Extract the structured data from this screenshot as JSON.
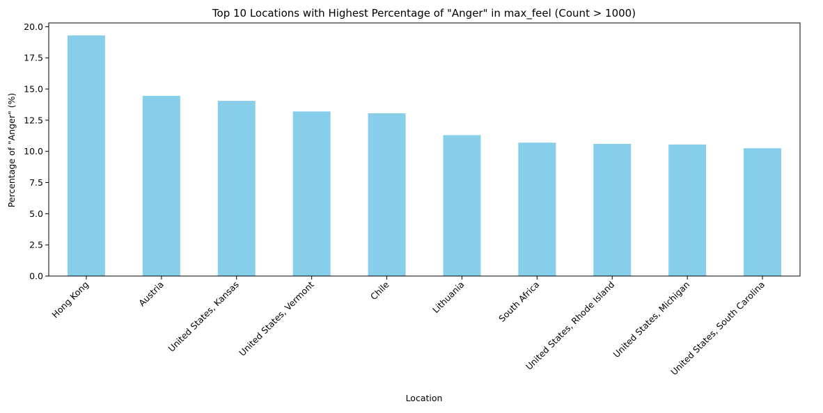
{
  "chart_data": {
    "type": "bar",
    "title": "Top 10 Locations with Highest Percentage of \"Anger\" in max_feel (Count > 1000)",
    "xlabel": "Location",
    "ylabel": "Percentage of \"Anger\" (%)",
    "categories": [
      "Hong Kong",
      "Austria",
      "United States, Kansas",
      "United States, Vermont",
      "Chile",
      "Lithuania",
      "South Africa",
      "United States, Rhode Island",
      "United States, Michigan",
      "United States, South Carolina"
    ],
    "values": [
      19.3,
      14.45,
      14.05,
      13.2,
      13.05,
      11.3,
      10.7,
      10.6,
      10.55,
      10.25
    ],
    "ylim": [
      0,
      20.3
    ],
    "yticks": [
      "0.0",
      "2.5",
      "5.0",
      "7.5",
      "10.0",
      "12.5",
      "15.0",
      "17.5",
      "20.0"
    ],
    "bar_color": "#87CEEB",
    "grid": false,
    "legend": "none"
  }
}
